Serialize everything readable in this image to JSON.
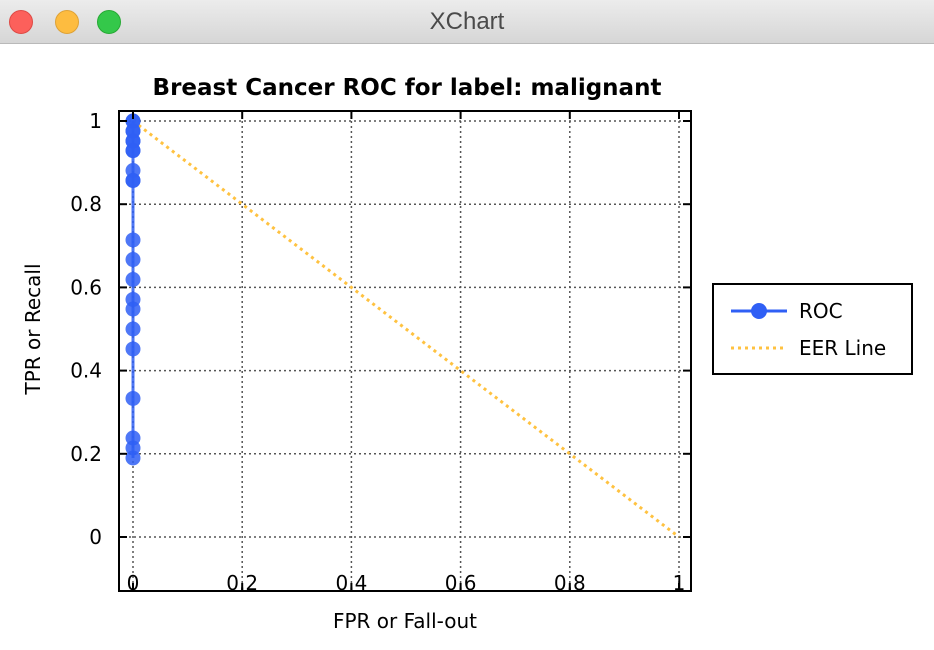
{
  "window": {
    "title": "XChart",
    "controls": [
      "close",
      "minimize",
      "zoom"
    ]
  },
  "chart_data": {
    "type": "line",
    "title": "Breast Cancer ROC for label: malignant",
    "xlabel": "FPR or Fall-out",
    "ylabel": "TPR or Recall",
    "xlim": [
      0,
      1
    ],
    "ylim": [
      0,
      1
    ],
    "x_ticks": [
      {
        "value": 0,
        "label": "0"
      },
      {
        "value": 0.2,
        "label": "0.2"
      },
      {
        "value": 0.4,
        "label": "0.4"
      },
      {
        "value": 0.6,
        "label": "0.6"
      },
      {
        "value": 0.8,
        "label": "0.8"
      },
      {
        "value": 1,
        "label": "1"
      }
    ],
    "y_ticks": [
      {
        "value": 0,
        "label": "0"
      },
      {
        "value": 0.2,
        "label": "0.2"
      },
      {
        "value": 0.4,
        "label": "0.4"
      },
      {
        "value": 0.6,
        "label": "0.6"
      },
      {
        "value": 0.8,
        "label": "0.8"
      },
      {
        "value": 1,
        "label": "1"
      }
    ],
    "grid": true,
    "legend_position": "outside-right",
    "series": [
      {
        "name": "ROC",
        "color": "#2f5ff5",
        "style": "line-markers",
        "x": [
          0,
          0,
          0,
          0,
          0,
          0,
          0,
          0,
          0,
          0,
          0,
          0,
          0,
          0,
          0,
          0,
          0,
          0,
          0,
          0,
          0,
          0
        ],
        "y": [
          0.19,
          0.214,
          0.238,
          0.333,
          0.452,
          0.5,
          0.548,
          0.571,
          0.619,
          0.667,
          0.714,
          0.857,
          0.881,
          0.929,
          0.952,
          0.976,
          1,
          0.976,
          0.952,
          0.929,
          0.857,
          1
        ]
      },
      {
        "name": "EER Line",
        "color": "#ffc240",
        "style": "dotted",
        "x": [
          0,
          1
        ],
        "y": [
          1,
          0
        ]
      }
    ]
  }
}
